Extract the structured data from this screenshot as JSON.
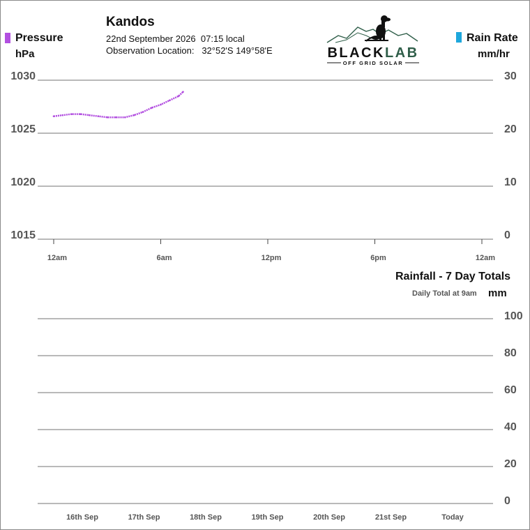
{
  "header": {
    "station": "Kandos",
    "date_line": "22nd September 2026  07:15 local",
    "location_label": "Observation Location:",
    "location_value": "32°52'S 149°58'E"
  },
  "logo": {
    "brand_black": "BLACK",
    "brand_green": "LAB",
    "tagline": "OFF GRID SOLAR",
    "brand_green_color": "#2f5e49"
  },
  "legend": {
    "pressure": {
      "name": "Pressure",
      "unit": "hPa",
      "color": "#b24fe0"
    },
    "rain_rate": {
      "name": "Rain Rate",
      "unit": "mm/hr",
      "color": "#1ea7dc"
    }
  },
  "chart_data": [
    {
      "type": "line",
      "left_axis": {
        "ylabel": "hPa",
        "ticks": [
          "1030",
          "1025",
          "1020",
          "1015"
        ],
        "ylim": [
          1015,
          1030
        ]
      },
      "right_axis": {
        "ylabel": "mm/hr",
        "ticks": [
          "30",
          "20",
          "10",
          "0"
        ],
        "ylim": [
          0,
          30
        ]
      },
      "x_ticks": [
        "12am",
        "6am",
        "12pm",
        "6pm",
        "12am"
      ],
      "x_range_hours": [
        0,
        24
      ],
      "grid": true,
      "series": [
        {
          "name": "Pressure",
          "axis": "left",
          "color": "#b24fe0",
          "x": [
            0.0,
            0.5,
            1.0,
            1.5,
            2.0,
            2.5,
            3.0,
            3.5,
            4.0,
            4.5,
            5.0,
            5.5,
            6.0,
            6.5,
            7.0,
            7.25
          ],
          "y": [
            1026.6,
            1026.7,
            1026.8,
            1026.8,
            1026.7,
            1026.6,
            1026.5,
            1026.5,
            1026.5,
            1026.7,
            1027.0,
            1027.4,
            1027.7,
            1028.1,
            1028.5,
            1028.9
          ]
        },
        {
          "name": "Rain Rate",
          "axis": "right",
          "color": "#1ea7dc",
          "x": [],
          "y": []
        }
      ]
    },
    {
      "type": "bar",
      "title": "Rainfall - 7 Day Totals",
      "subtitle": "Daily Total at 9am",
      "ylabel": "mm",
      "ticks": [
        "100",
        "80",
        "60",
        "40",
        "20",
        "0"
      ],
      "ylim": [
        0,
        100
      ],
      "categories": [
        "16th Sep",
        "17th Sep",
        "18th Sep",
        "19th Sep",
        "20th Sep",
        "21st Sep",
        "Today"
      ],
      "values": [
        0,
        0,
        0,
        0,
        0,
        0,
        0
      ],
      "grid": true
    }
  ]
}
